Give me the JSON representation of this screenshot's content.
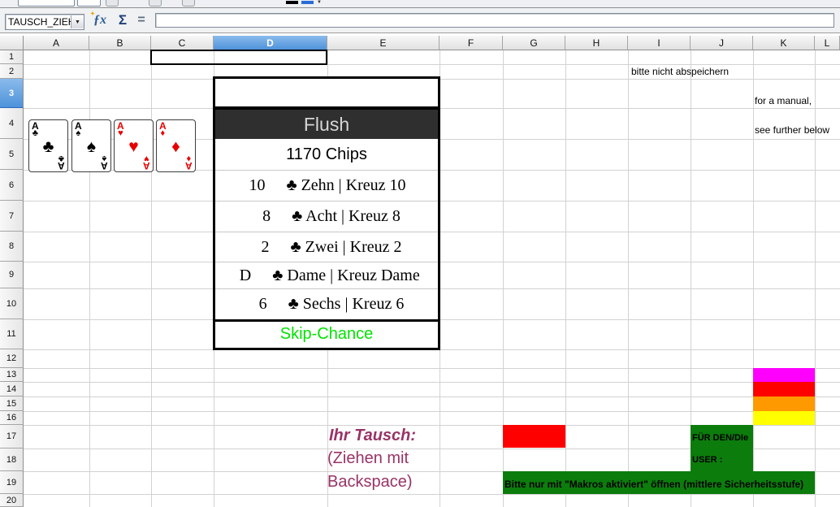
{
  "toolbar": {
    "font_color_swatch": "#000000",
    "highlight_swatch": "#2b6bd8",
    "dropdown_icon": "▼"
  },
  "formula_bar": {
    "name_box_value": "TAUSCH_ZIEHFELD",
    "dropdown_icon": "▼",
    "function_wizard_icon": "ƒx",
    "sum_icon": "Σ",
    "equals_icon": "=",
    "formula_value": ""
  },
  "grid": {
    "columns": [
      "A",
      "B",
      "C",
      "D",
      "E",
      "F",
      "G",
      "H",
      "I",
      "J",
      "K",
      "L"
    ],
    "rows": [
      "1",
      "2",
      "3",
      "4",
      "5",
      "6",
      "7",
      "8",
      "9",
      "10",
      "11",
      "12",
      "13",
      "14",
      "15",
      "16",
      "17",
      "18",
      "19",
      "20"
    ],
    "selected_column": "D",
    "selected_row": "3"
  },
  "notes": {
    "no_save": "bitte nicht abspeichern",
    "manual_line1": "for a manual,",
    "manual_line2": "see further below"
  },
  "hand_cards": [
    {
      "rank": "A",
      "suit": "♣",
      "name": "ace-of-clubs",
      "color": "#000000"
    },
    {
      "rank": "A",
      "suit": "♠",
      "name": "ace-of-spades",
      "color": "#000000"
    },
    {
      "rank": "A",
      "suit": "♥",
      "name": "ace-of-hearts",
      "color": "#e60000"
    },
    {
      "rank": "A",
      "suit": "♦",
      "name": "ace-of-diamonds",
      "color": "#e60000"
    }
  ],
  "result_panel": {
    "hand_name": "Flush",
    "chips": "1170 Chips",
    "rows": [
      {
        "rank": "10",
        "label": "♣ Zehn | Kreuz 10"
      },
      {
        "rank": "8",
        "label": "♣ Acht | Kreuz 8"
      },
      {
        "rank": "2",
        "label": "♣ Zwei | Kreuz 2"
      },
      {
        "rank": "D",
        "label": "♣ Dame | Kreuz Dame"
      },
      {
        "rank": "6",
        "label": "♣ Sechs | Kreuz 6"
      }
    ],
    "skip_label": "Skip-Chance",
    "skip_color": "#00e400",
    "header_bg": "#2f2f2f",
    "header_text_color": "#d6d6d6"
  },
  "tausch": {
    "title": "Ihr Tausch:",
    "line2": "(Ziehen mit",
    "line3": "Backspace)",
    "color": "#993366"
  },
  "user_panel": {
    "fuer_label": "FÜR DEN/DIe",
    "user_label": "USER :",
    "macro_note": "Bitte nur mit \"Makros aktiviert\" öffnen (mittlere Sicherheitsstufe)",
    "green": "#0c7c0c"
  },
  "legend_colors": [
    "#ff00ff",
    "#ff0000",
    "#ff9900",
    "#ffff00"
  ],
  "highlight": {
    "red_cell": "#ff0000"
  }
}
